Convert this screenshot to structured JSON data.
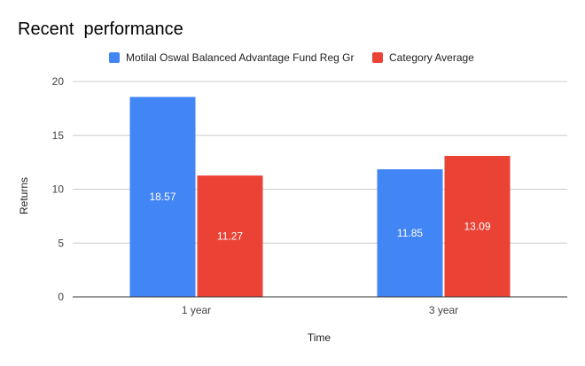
{
  "chart_data": {
    "type": "bar",
    "title": "Recent  performance",
    "xlabel": "Time",
    "ylabel": "Returns",
    "categories": [
      "1 year",
      "3 year"
    ],
    "series": [
      {
        "name": "Motilal Oswal Balanced Advantage Fund Reg Gr",
        "color": "#4285f4",
        "values": [
          18.57,
          11.85
        ]
      },
      {
        "name": "Category Average",
        "color": "#ea4335",
        "values": [
          11.27,
          13.09
        ]
      }
    ],
    "ylim": [
      0,
      20
    ],
    "yticks": [
      "0",
      "5",
      "10",
      "15",
      "20"
    ],
    "grid": true,
    "legend_position": "top"
  }
}
